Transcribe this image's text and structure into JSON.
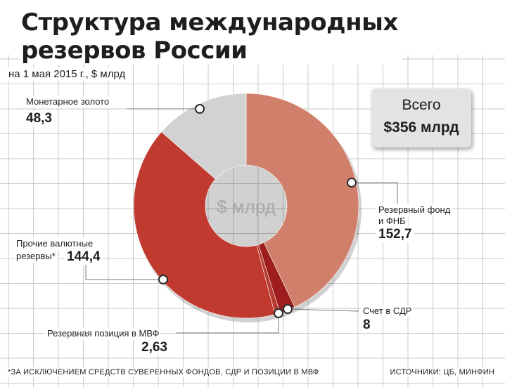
{
  "title_line1": "Структура международных",
  "title_line2": "резервов России",
  "subtitle": "на 1 мая 2015 г., $ млрд",
  "total_label": "Всего",
  "total_value": "$356 млрд",
  "center_unit": "$ млрд",
  "footnote": "*ЗА ИСКЛЮЧЕНИЕМ СРЕДСТВ СУВЕРЕННЫХ ФОНДОВ, СДР И ПОЗИЦИИ В МВФ",
  "source": "ИСТОЧНИКИ: ЦБ, МИНФИН",
  "labels": {
    "gold_label": "Монетарное золото",
    "gold_value": "48,3",
    "reserve_fund_label1": "Резервный фонд",
    "reserve_fund_label2": "и ФНБ",
    "reserve_fund_value": "152,7",
    "sdr_label": "Счет в СДР",
    "sdr_value": "8",
    "imf_label": "Резервная позиция в МВФ",
    "imf_value": "2,63",
    "other_label1": "Прочие валютные",
    "other_label2": "резервы*",
    "other_value": "144,4"
  },
  "chart_data": {
    "type": "pie",
    "title": "Структура международных резервов России",
    "subtitle": "на 1 мая 2015 г., $ млрд",
    "total": 356,
    "slices": [
      {
        "name": "Резервный фонд и ФНБ",
        "value": 152.7,
        "color": "#d07f6b"
      },
      {
        "name": "Счет в СДР",
        "value": 8,
        "color": "#9e1e1e"
      },
      {
        "name": "Резервная позиция в МВФ",
        "value": 2.63,
        "color": "#b53a2f"
      },
      {
        "name": "Прочие валютные резервы*",
        "value": 144.4,
        "color": "#c03a30"
      },
      {
        "name": "Монетарное золото",
        "value": 48.3,
        "color": "#d2d2d2"
      }
    ]
  }
}
